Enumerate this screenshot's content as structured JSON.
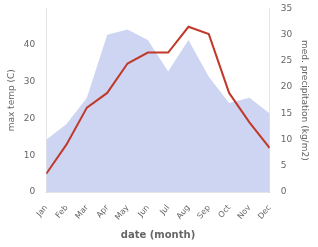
{
  "chart_data": {
    "type": "line",
    "categories": [
      "Jan",
      "Feb",
      "Mar",
      "Apr",
      "May",
      "Jun",
      "Jul",
      "Aug",
      "Sep",
      "Oct",
      "Nov",
      "Dec"
    ],
    "series": [
      {
        "type": "line",
        "color": "#c0392b",
        "values": [
          5,
          13,
          23,
          27,
          35,
          38,
          38,
          45,
          43,
          27,
          19,
          12
        ]
      },
      {
        "type": "area",
        "color": "#c5cef0",
        "axis": "y2",
        "values": [
          10,
          13,
          18,
          30,
          31,
          29,
          23,
          29,
          22,
          17,
          18,
          15
        ]
      }
    ],
    "xlabel": "date (month)",
    "ylabel": "max temp (C)",
    "y2label": "med. precipitation (kg/m2)",
    "ylim": [
      0,
      50
    ],
    "yticks": [
      0,
      10,
      20,
      30,
      40
    ],
    "y2lim": [
      0,
      35
    ],
    "y2ticks": [
      0,
      5,
      10,
      15,
      20,
      25,
      30,
      35
    ],
    "grid": false
  }
}
